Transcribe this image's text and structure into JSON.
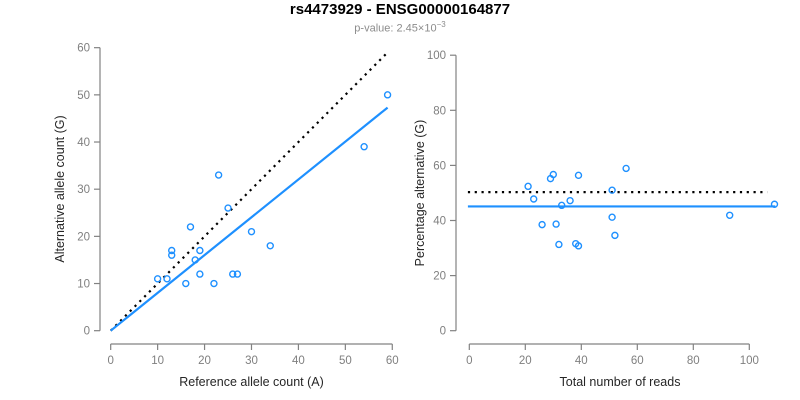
{
  "figure": {
    "title": "rs4473929 - ENSG00000164877",
    "subtitle_prefix": "p-value: 2.45×10",
    "subtitle_exponent": "−3"
  },
  "colors": {
    "accent_blue": "#1E90FF",
    "line_black": "#000000",
    "axis_gray": "#828282",
    "tick_label_gray": "#7f7f7f",
    "axis_title_color": "#262626"
  },
  "chart_data": [
    {
      "type": "scatter",
      "title": "",
      "xlabel": "Reference allele count (A)",
      "ylabel": "Alternative allele count (G)",
      "xlim": [
        0,
        60
      ],
      "ylim": [
        0,
        60
      ],
      "xticks": [
        0,
        10,
        20,
        30,
        40,
        50,
        60
      ],
      "yticks": [
        0,
        10,
        20,
        30,
        40,
        50,
        60
      ],
      "grid": false,
      "points": [
        [
          10,
          11
        ],
        [
          12,
          11
        ],
        [
          13,
          16
        ],
        [
          13,
          17
        ],
        [
          16,
          10
        ],
        [
          17,
          22
        ],
        [
          18,
          15
        ],
        [
          19,
          12
        ],
        [
          19,
          17
        ],
        [
          22,
          10
        ],
        [
          23,
          33
        ],
        [
          25,
          26
        ],
        [
          26,
          12
        ],
        [
          27,
          12
        ],
        [
          30,
          21
        ],
        [
          34,
          18
        ],
        [
          54,
          39
        ],
        [
          59,
          50
        ]
      ],
      "lines": [
        {
          "name": "identity-line",
          "style": "dotted",
          "color": "#000000",
          "points": [
            [
              0,
              0
            ],
            [
              58.6,
              58.6
            ]
          ]
        },
        {
          "name": "regression-line",
          "style": "solid",
          "color": "#1E90FF",
          "points": [
            [
              0,
              0
            ],
            [
              59,
              47.3
            ]
          ]
        }
      ]
    },
    {
      "type": "scatter",
      "title": "",
      "xlabel": "Total number of reads",
      "ylabel": "Percentage alternative (G)",
      "xlim": [
        0,
        100
      ],
      "ylim": [
        0,
        100
      ],
      "xticks": [
        0,
        20,
        40,
        60,
        80,
        100
      ],
      "yticks": [
        0,
        20,
        40,
        60,
        80,
        100
      ],
      "grid": false,
      "points": [
        [
          21,
          52.4
        ],
        [
          23,
          47.8
        ],
        [
          26,
          38.5
        ],
        [
          29,
          55.2
        ],
        [
          30,
          56.7
        ],
        [
          31,
          38.7
        ],
        [
          32,
          31.3
        ],
        [
          33,
          45.5
        ],
        [
          36,
          47.2
        ],
        [
          38,
          31.6
        ],
        [
          39,
          30.8
        ],
        [
          39,
          56.4
        ],
        [
          51,
          41.2
        ],
        [
          51,
          51.0
        ],
        [
          52,
          34.6
        ],
        [
          56,
          58.9
        ],
        [
          93,
          41.9
        ],
        [
          109,
          45.9
        ]
      ],
      "lines": [
        {
          "name": "expected-percentage-line",
          "style": "dotted",
          "color": "#000000",
          "points": [
            [
              -0.5,
              50.3
            ],
            [
              106.4,
              50.3
            ]
          ]
        },
        {
          "name": "mean-percentage-line",
          "style": "solid",
          "color": "#1E90FF",
          "points": [
            [
              -0.5,
              45.1
            ],
            [
              109.3,
              45.1
            ]
          ]
        }
      ]
    }
  ]
}
